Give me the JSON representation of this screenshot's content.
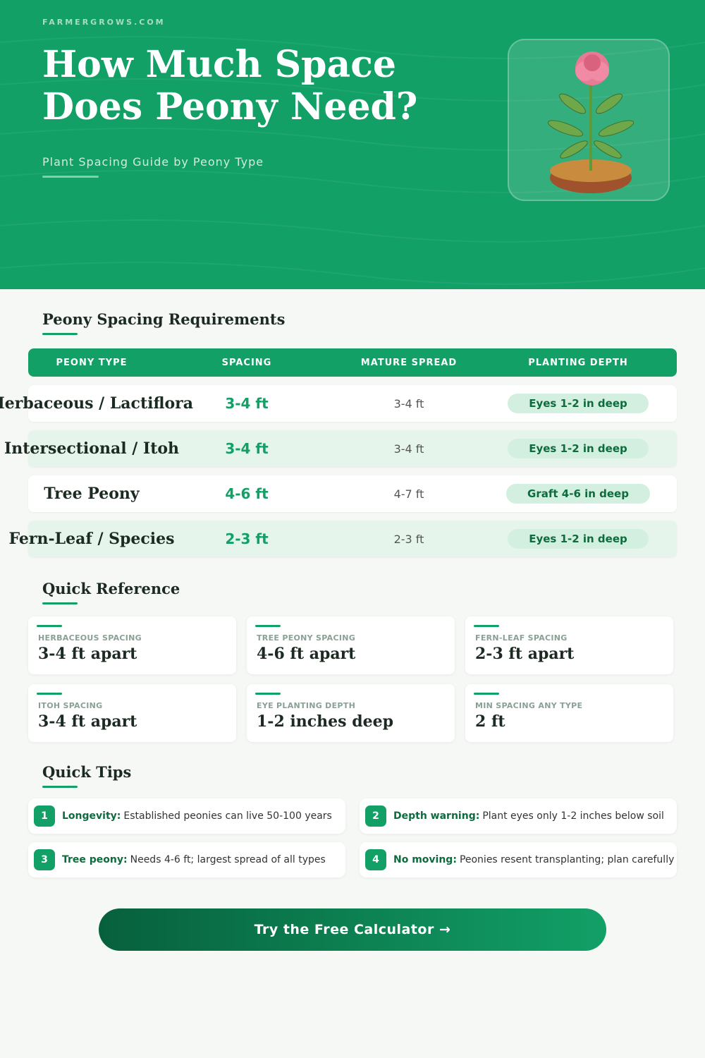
{
  "hero": {
    "site": "FARMERGROWS.COM",
    "title_line1": "How Much Space",
    "title_line2": "Does Peony Need?",
    "subtitle": "Plant Spacing Guide by Peony Type",
    "image": "peony-plant-illustration"
  },
  "spacing_section": {
    "heading": "Peony Spacing Requirements",
    "columns": [
      "PEONY TYPE",
      "SPACING",
      "MATURE SPREAD",
      "PLANTING DEPTH"
    ],
    "rows": [
      {
        "type": "Herbaceous / Lactiflora",
        "spacing": "3-4 ft",
        "spread": "3-4 ft",
        "depth": "Eyes 1-2 in deep"
      },
      {
        "type": "Intersectional / Itoh",
        "spacing": "3-4 ft",
        "spread": "3-4 ft",
        "depth": "Eyes 1-2 in deep"
      },
      {
        "type": "Tree Peony",
        "spacing": "4-6 ft",
        "spread": "4-7 ft",
        "depth": "Graft 4-6 in deep"
      },
      {
        "type": "Fern-Leaf / Species",
        "spacing": "2-3 ft",
        "spread": "2-3 ft",
        "depth": "Eyes 1-2 in deep"
      }
    ]
  },
  "quick_reference": {
    "heading": "Quick Reference",
    "cards": [
      {
        "label": "HERBACEOUS SPACING",
        "value": "3-4 ft apart"
      },
      {
        "label": "TREE PEONY SPACING",
        "value": "4-6 ft apart"
      },
      {
        "label": "FERN-LEAF SPACING",
        "value": "2-3 ft apart"
      },
      {
        "label": "ITOH SPACING",
        "value": "3-4 ft apart"
      },
      {
        "label": "EYE PLANTING DEPTH",
        "value": "1-2 inches deep"
      },
      {
        "label": "MIN SPACING ANY TYPE",
        "value": "2 ft"
      }
    ]
  },
  "tips": {
    "heading": "Quick Tips",
    "items": [
      {
        "num": "1",
        "bold": "Longevity:",
        "text": "Established peonies can live 50-100 years"
      },
      {
        "num": "2",
        "bold": "Depth warning:",
        "text": "Plant eyes only 1-2 inches below soil"
      },
      {
        "num": "3",
        "bold": "Tree peony:",
        "text": "Needs 4-6 ft; largest spread of all types"
      },
      {
        "num": "4",
        "bold": "No moving:",
        "text": "Peonies resent transplanting; plan carefully"
      }
    ]
  },
  "cta": {
    "label": "Try the Free Calculator →"
  },
  "colors": {
    "brand": "#12a067",
    "dark": "#0d6b3e",
    "pill": "#d3efdf"
  }
}
